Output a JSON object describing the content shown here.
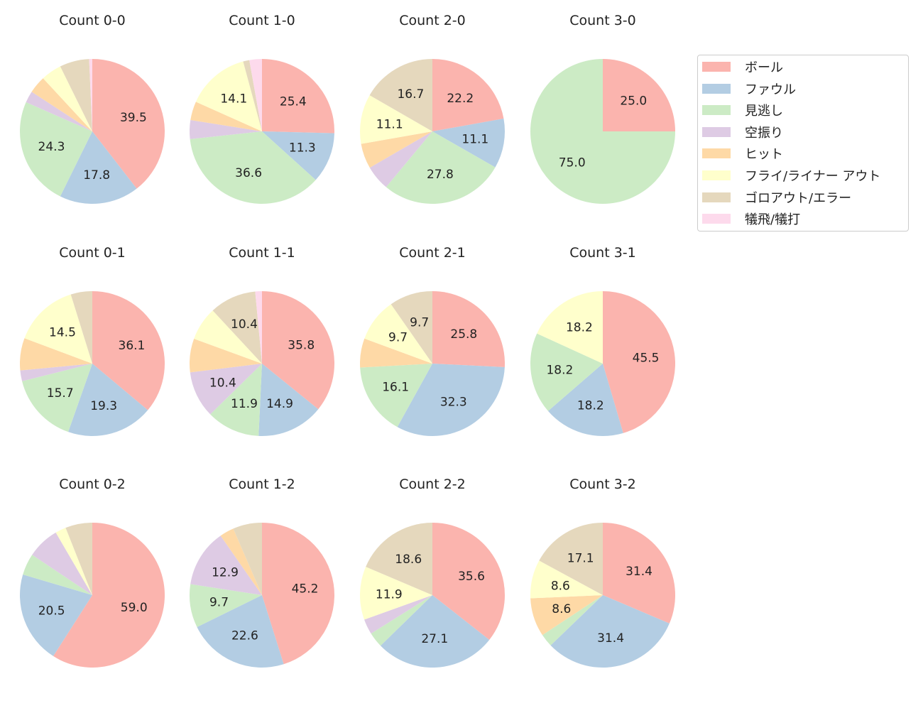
{
  "chart_data": {
    "type": "pie",
    "legend_position": "right",
    "label_threshold_percent": 8,
    "categories": [
      "ボール",
      "ファウル",
      "見逃し",
      "空振り",
      "ヒット",
      "フライ/ライナー アウト",
      "ゴロアウト/エラー",
      "犠飛/犠打"
    ],
    "colors": [
      "#fbb4ae",
      "#b3cde3",
      "#ccebc5",
      "#decbe4",
      "#fed9a6",
      "#ffffcc",
      "#e5d8bd",
      "#fddaec"
    ],
    "pies": [
      {
        "title": "Count 0-0",
        "values": [
          39.5,
          17.8,
          24.3,
          2.6,
          3.9,
          4.6,
          6.6,
          0.7
        ]
      },
      {
        "title": "Count 1-0",
        "values": [
          25.4,
          11.3,
          36.6,
          4.2,
          4.2,
          14.1,
          1.4,
          2.8
        ]
      },
      {
        "title": "Count 2-0",
        "values": [
          22.2,
          11.1,
          27.8,
          5.6,
          5.6,
          11.1,
          16.7,
          0
        ]
      },
      {
        "title": "Count 3-0",
        "values": [
          25.0,
          0,
          75.0,
          0,
          0,
          0,
          0,
          0
        ]
      },
      {
        "title": "Count 0-1",
        "values": [
          36.1,
          19.3,
          15.7,
          2.4,
          7.2,
          14.5,
          4.8,
          0
        ]
      },
      {
        "title": "Count 1-1",
        "values": [
          35.8,
          14.9,
          11.9,
          10.4,
          7.5,
          7.5,
          10.4,
          1.5
        ]
      },
      {
        "title": "Count 2-1",
        "values": [
          25.8,
          32.3,
          16.1,
          0,
          6.5,
          9.7,
          9.7,
          0
        ]
      },
      {
        "title": "Count 3-1",
        "values": [
          45.5,
          18.2,
          18.2,
          0,
          0,
          18.2,
          0,
          0
        ]
      },
      {
        "title": "Count 0-2",
        "values": [
          59.0,
          20.5,
          4.8,
          7.2,
          0,
          2.4,
          6.0,
          0
        ]
      },
      {
        "title": "Count 1-2",
        "values": [
          45.2,
          22.6,
          9.7,
          12.9,
          3.2,
          0,
          6.5,
          0
        ]
      },
      {
        "title": "Count 2-2",
        "values": [
          35.6,
          27.1,
          3.4,
          3.4,
          0,
          11.9,
          18.6,
          0
        ]
      },
      {
        "title": "Count 3-2",
        "values": [
          31.4,
          31.4,
          2.9,
          0,
          8.6,
          8.6,
          17.1,
          0
        ]
      }
    ]
  }
}
